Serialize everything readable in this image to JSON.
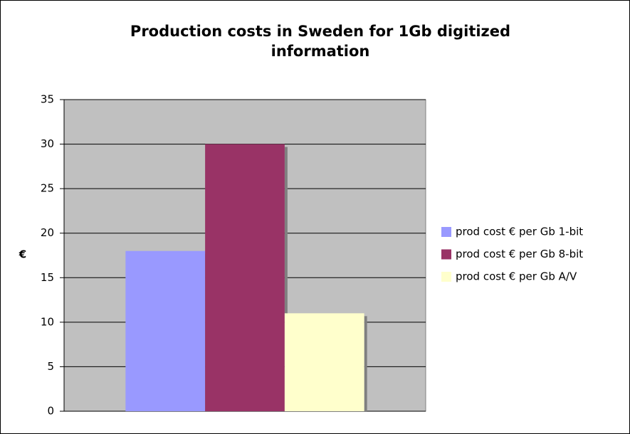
{
  "chart_data": {
    "type": "bar",
    "title": "Production costs in Sweden for 1Gb digitized information",
    "ylabel": "€",
    "categories": [
      null
    ],
    "series": [
      {
        "name": "prod cost € per Gb 1-bit",
        "color": "#9999ff",
        "values": [
          18
        ]
      },
      {
        "name": "prod cost € per Gb 8-bit",
        "color": "#993366",
        "values": [
          30
        ]
      },
      {
        "name": "prod cost € per Gb A/V",
        "color": "#ffffcc",
        "values": [
          11
        ]
      }
    ],
    "ylim": [
      0,
      35
    ],
    "yticks": [
      0,
      5,
      10,
      15,
      20,
      25,
      30,
      35
    ],
    "grid": true,
    "legend": "right"
  }
}
